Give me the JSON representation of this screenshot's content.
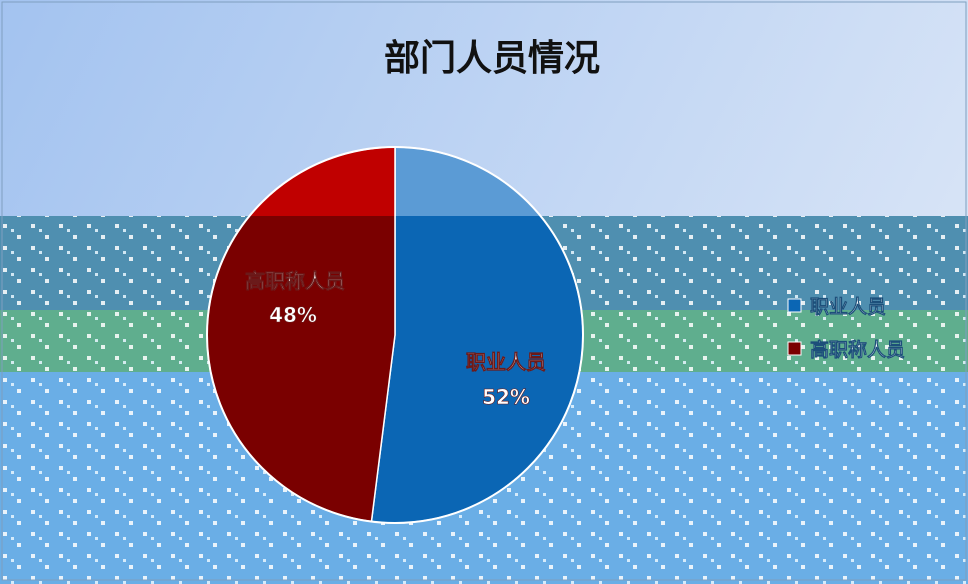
{
  "chart_data": {
    "type": "pie",
    "title": "部门人员情况",
    "slices": [
      {
        "label": "职业人员",
        "value": 52,
        "percent_label": "52%",
        "color": "#0b66b4"
      },
      {
        "label": "高职称人员",
        "value": 48,
        "percent_label": "48%",
        "color": "#7a0000"
      }
    ],
    "legend": {
      "placement": "right",
      "entries": [
        {
          "label": "职业人员",
          "color": "#0b66b4"
        },
        {
          "label": "高职称人员",
          "color": "#7a0000"
        }
      ]
    }
  },
  "colors": {
    "background_top": "#a9c6ef",
    "background_bottom": "#6aaee6",
    "band_teal": "#4f8fb0",
    "band_green": "#5fae8e",
    "slice_highlight_blue": "#5b9bd5",
    "slice_highlight_red": "#c00000"
  }
}
